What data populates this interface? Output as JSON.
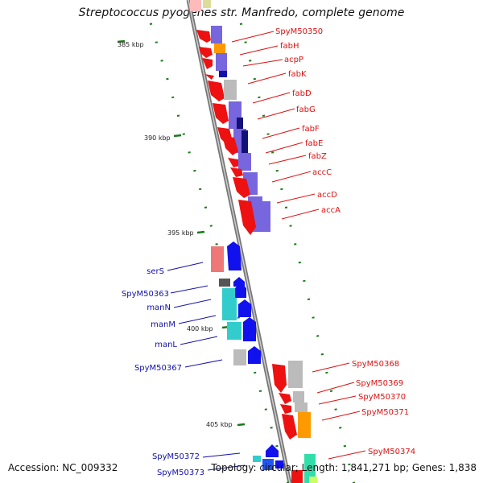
{
  "title": "Streptococcus pyogenes str. Manfredo, complete genome",
  "footer": {
    "accession": "Accession: NC_009332",
    "info": "Topology: circular; Length: 1,841,271 bp; Genes: 1,838"
  },
  "scale_labels": [
    "385 kbp",
    "390 kbp",
    "395 kbp",
    "400 kbp",
    "405 kbp"
  ],
  "colors": {
    "forward_label": "#dd1111",
    "reverse_label": "#1111aa",
    "gene_arrow_forward": "#ee1111",
    "gene_arrow_reverse": "#1111ee",
    "backbone": "#888888",
    "tick": "#1a7a1a"
  },
  "forward_genes": [
    "SpyM50350",
    "fabH",
    "acpP",
    "fabK",
    "fabD",
    "fabG",
    "fabF",
    "fabE",
    "fabZ",
    "accC",
    "accD",
    "accA",
    "SpyM50368",
    "SpyM50369",
    "SpyM50370",
    "SpyM50371",
    "SpyM50374"
  ],
  "reverse_genes": [
    "serS",
    "SpyM50363",
    "manN",
    "manM",
    "manL",
    "SpyM50367",
    "SpyM50372",
    "SpyM50373"
  ]
}
